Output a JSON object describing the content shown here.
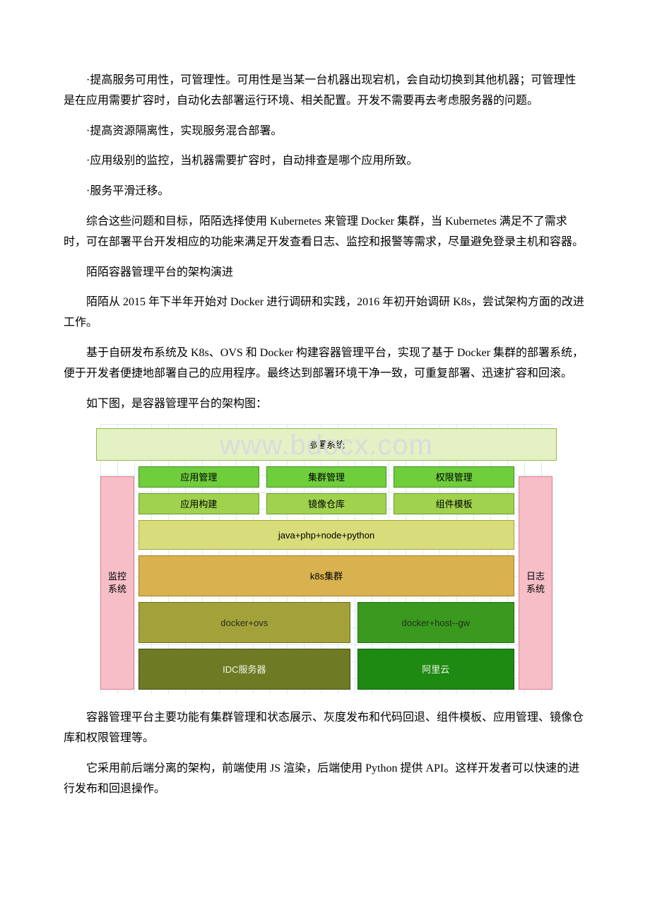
{
  "paragraphs": {
    "p1": "·提高服务可用性，可管理性。可用性是当某一台机器出现宕机，会自动切换到其他机器；可管理性是在应用需要扩容时，自动化去部署运行环境、相关配置。开发不需要再去考虑服务器的问题。",
    "p2": "·提高资源隔离性，实现服务混合部署。",
    "p3": "·应用级别的监控，当机器需要扩容时，自动排查是哪个应用所致。",
    "p4": "·服务平滑迁移。",
    "p5": "综合这些问题和目标，陌陌选择使用 Kubernetes 来管理 Docker 集群，当 Kubernetes 满足不了需求时，可在部署平台开发相应的功能来满足开发查看日志、监控和报警等需求，尽量避免登录主机和容器。",
    "p6": "陌陌容器管理平台的架构演进",
    "p7": "陌陌从 2015 年下半年开始对 Docker 进行调研和实践，2016 年初开始调研 K8s，尝试架构方面的改进工作。",
    "p8": "基于自研发布系统及 K8s、OVS 和 Docker 构建容器管理平台，实现了基于 Docker 集群的部署系统，便于开发者便捷地部署自己的应用程序。最终达到部署环境干净一致，可重复部署、迅速扩容和回滚。",
    "p9": "如下图，是容器管理平台的架构图：",
    "p10": "容器管理平台主要功能有集群管理和状态展示、灰度发布和代码回退、组件模板、应用管理、镜像仓库和权限管理等。",
    "p11": "它采用前后端分离的架构，前端使用 JS 渲染，后端使用 Python 提供 API。这样开发者可以快速的进行发布和回退操作。"
  },
  "watermark": "www.bdocx.com",
  "diagram": {
    "left_side": {
      "label": "监控系统",
      "bg": "#f6bec7",
      "border": "#e17a92"
    },
    "right_side": {
      "label": "日志系统",
      "bg": "#f6bec7",
      "border": "#e17a92"
    },
    "top": {
      "label": "部署系统",
      "bg": "#e3f1c4",
      "border": "#8fb84a",
      "height": 46
    },
    "row1": [
      {
        "label": "应用管理",
        "bg": "#6fce3c",
        "border": "#3f8f1a"
      },
      {
        "label": "集群管理",
        "bg": "#6fce3c",
        "border": "#3f8f1a"
      },
      {
        "label": "权限管理",
        "bg": "#6fce3c",
        "border": "#3f8f1a"
      }
    ],
    "row2": [
      {
        "label": "应用构建",
        "bg": "#a0d24e",
        "border": "#6d9929"
      },
      {
        "label": "镜像仓库",
        "bg": "#a0d24e",
        "border": "#6d9929"
      },
      {
        "label": "组件模板",
        "bg": "#a0d24e",
        "border": "#6d9929"
      }
    ],
    "lang": {
      "label": "java+php+node+python",
      "bg": "#d8dc7a",
      "border": "#a3a637",
      "height": 42
    },
    "k8s": {
      "label": "k8s集群",
      "bg": "#d8b24e",
      "border": "#a77d1f",
      "height": 58
    },
    "row_docker": [
      {
        "label": "docker+ovs",
        "bg": "#a3a13a",
        "border": "#6e6c1e",
        "flex": 1.35
      },
      {
        "label": "docker+host--gw",
        "bg": "#3a9a1f",
        "border": "#1f6b0d",
        "flex": 1
      }
    ],
    "row_infra": [
      {
        "label": "IDC服务器",
        "bg": "#6f7a24",
        "border": "#454d10",
        "flex": 1.35
      },
      {
        "label": "阿里云",
        "bg": "#1e8a12",
        "border": "#0d5a07",
        "flex": 1
      }
    ],
    "row_h_small": 30,
    "row_h_big": 58
  }
}
